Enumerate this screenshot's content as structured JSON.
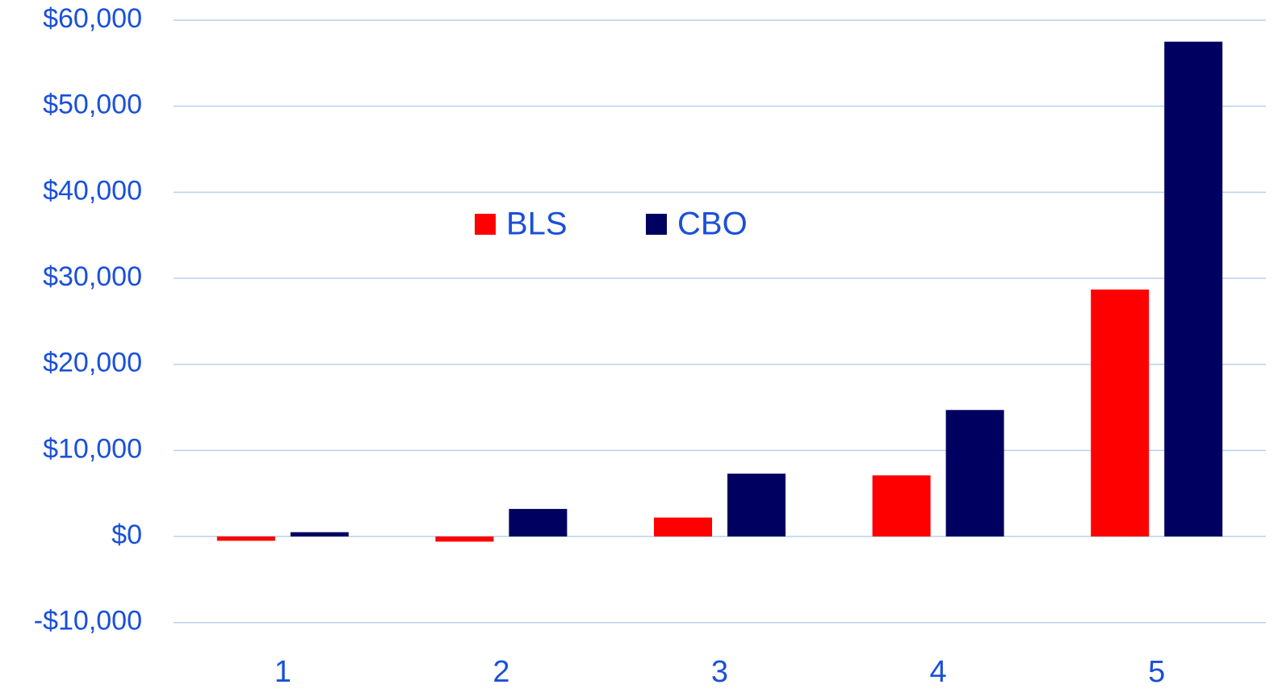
{
  "chart_data": {
    "type": "bar",
    "categories": [
      "1",
      "2",
      "3",
      "4",
      "5"
    ],
    "series": [
      {
        "name": "BLS",
        "color": "#ff0000",
        "values": [
          -500,
          -600,
          2200,
          7100,
          28700
        ]
      },
      {
        "name": "CBO",
        "color": "#000060",
        "values": [
          500,
          3200,
          7300,
          14700,
          57500
        ]
      }
    ],
    "ylim": [
      -10000,
      60000
    ],
    "yticks": [
      {
        "value": -10000,
        "label": "-$10,000"
      },
      {
        "value": 0,
        "label": "$0"
      },
      {
        "value": 10000,
        "label": "$10,000"
      },
      {
        "value": 20000,
        "label": "$20,000"
      },
      {
        "value": 30000,
        "label": "$30,000"
      },
      {
        "value": 40000,
        "label": "$40,000"
      },
      {
        "value": 50000,
        "label": "$50,000"
      },
      {
        "value": 60000,
        "label": "$60,000"
      }
    ],
    "grid": true,
    "legend": "top"
  }
}
